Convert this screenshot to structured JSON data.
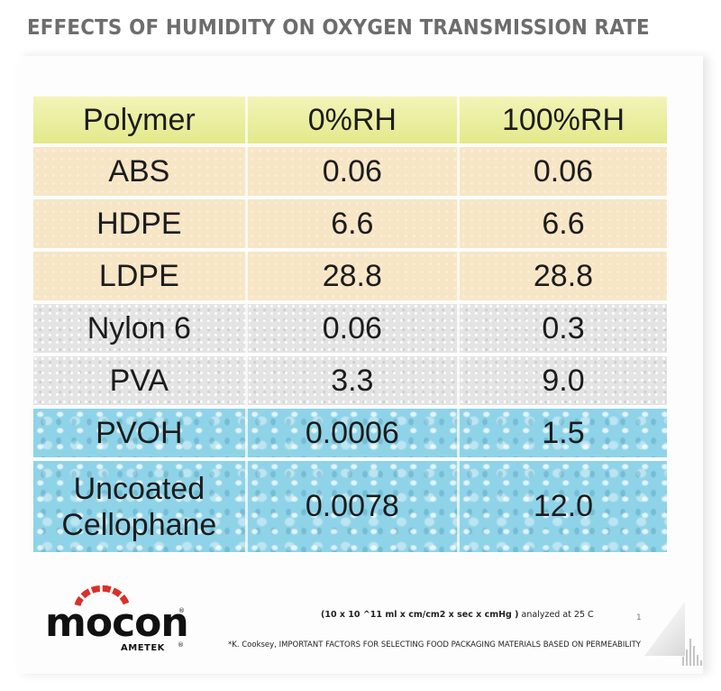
{
  "title": "EFFECTS OF HUMIDITY ON OXYGEN TRANSMISSION RATE",
  "colors": {
    "accent_red": "#d9302b",
    "accent_gray": "#8f8f8f",
    "header_row": "#e5ea90",
    "tan_rows": "#f7e6c6",
    "gray_rows": "#e4e4e4",
    "blue_rows": "#8fd3e8"
  },
  "table": {
    "headers": [
      "Polymer",
      "0%RH",
      "100%RH"
    ],
    "rows": [
      {
        "polymer": "ABS",
        "rh0": "0.06",
        "rh100": "0.06",
        "group": "tan"
      },
      {
        "polymer": "HDPE",
        "rh0": "6.6",
        "rh100": "6.6",
        "group": "tan"
      },
      {
        "polymer": "LDPE",
        "rh0": "28.8",
        "rh100": "28.8",
        "group": "tan"
      },
      {
        "polymer": "Nylon 6",
        "rh0": "0.06",
        "rh100": "0.3",
        "group": "gray"
      },
      {
        "polymer": "PVA",
        "rh0": "3.3",
        "rh100": "9.0",
        "group": "gray"
      },
      {
        "polymer": "PVOH",
        "rh0": "0.0006",
        "rh100": "1.5",
        "group": "blue"
      },
      {
        "polymer": "Uncoated Cellophane",
        "polymer_line1": "Uncoated",
        "polymer_line2": "Cellophane",
        "rh0": "0.0078",
        "rh100": "12.0",
        "group": "blue"
      }
    ]
  },
  "units_note": {
    "bold": "(10 x 10 ^11 ml x cm/cm2 x sec x cmHg )",
    "rest": " analyzed at 25 C"
  },
  "page_number": "1",
  "footnote": "*K. Cooksey, IMPORTANT FACTORS FOR SELECTING FOOD PACKAGING MATERIALS BASED ON PERMEABILITY",
  "logo": {
    "name": "mocon",
    "sub": "AMETEK",
    "reg_mark": "®"
  }
}
